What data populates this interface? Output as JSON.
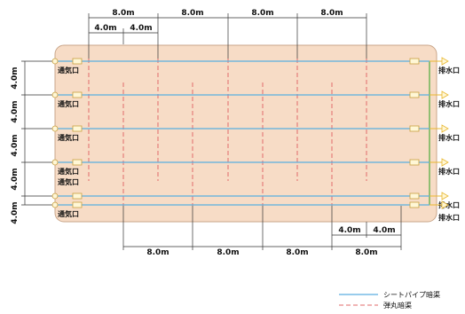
{
  "labels": {
    "inlet": "通気口",
    "outlet": "排水口"
  },
  "dimensions": {
    "top_spans": [
      "8.0m",
      "8.0m",
      "8.0m",
      "8.0m"
    ],
    "top_halves": [
      "4.0m",
      "4.0m"
    ],
    "left_spans": [
      "4.0m",
      "4.0m",
      "4.0m",
      "4.0m",
      "4.0m"
    ],
    "bottom_halves": [
      "4.0m",
      "4.0m"
    ],
    "bottom_spans": [
      "8.0m",
      "8.0m",
      "8.0m",
      "8.0m"
    ]
  },
  "legend": {
    "sheet_pipe": "シートパイプ暗渠",
    "bullet_drain": "弾丸暗渠"
  },
  "colors": {
    "field": "#f7dcc6",
    "field_border": "#c9a68a",
    "sheet_pipe": "#5aaee0",
    "bullet_drain": "#e06a6a",
    "collector": "#4caa3c",
    "outlet_arrow": "#e8b730"
  }
}
